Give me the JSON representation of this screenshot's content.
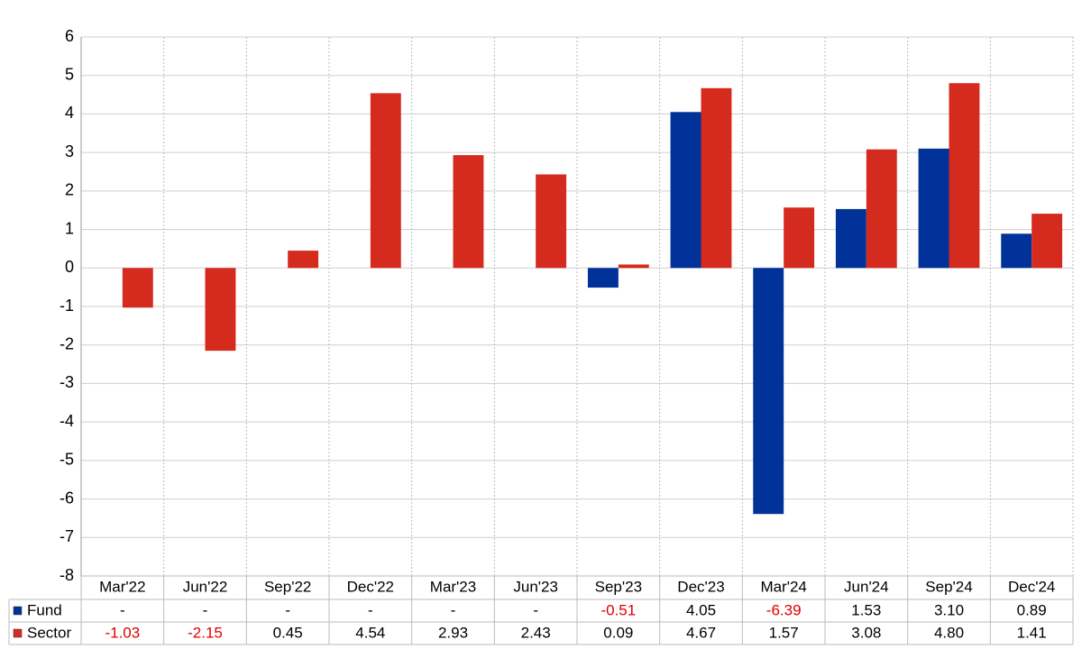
{
  "chart_data": {
    "type": "bar",
    "categories": [
      "Mar'22",
      "Jun'22",
      "Sep'22",
      "Dec'22",
      "Mar'23",
      "Jun'23",
      "Sep'23",
      "Dec'23",
      "Mar'24",
      "Jun'24",
      "Sep'24",
      "Dec'24"
    ],
    "series": [
      {
        "name": "Fund",
        "color": "#003299",
        "values": [
          null,
          null,
          null,
          null,
          null,
          null,
          -0.51,
          4.05,
          -6.39,
          1.53,
          3.1,
          0.89
        ],
        "value_labels": [
          "-",
          "-",
          "-",
          "-",
          "-",
          "-",
          "-0.51",
          "4.05",
          "-6.39",
          "1.53",
          "3.10",
          "0.89"
        ]
      },
      {
        "name": "Sector",
        "color": "#d52b1e",
        "values": [
          -1.03,
          -2.15,
          0.45,
          4.54,
          2.93,
          2.43,
          0.09,
          4.67,
          1.57,
          3.08,
          4.8,
          1.41
        ],
        "value_labels": [
          "-1.03",
          "-2.15",
          "0.45",
          "4.54",
          "2.93",
          "2.43",
          "0.09",
          "4.67",
          "1.57",
          "3.08",
          "4.80",
          "1.41"
        ]
      }
    ],
    "ylim": [
      -8,
      6
    ],
    "yticks": [
      -8,
      -7,
      -6,
      -5,
      -4,
      -3,
      -2,
      -1,
      0,
      1,
      2,
      3,
      4,
      5,
      6
    ],
    "grid": true,
    "negative_label_color": "#e00000"
  }
}
